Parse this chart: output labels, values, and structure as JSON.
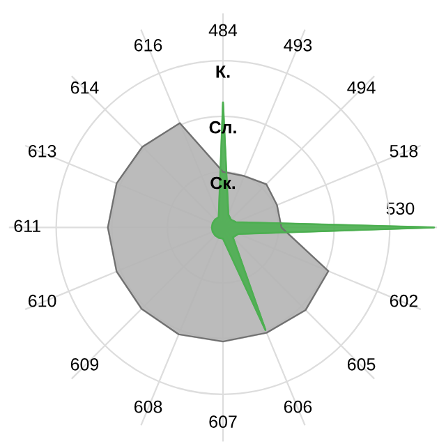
{
  "chart_data": {
    "type": "radar",
    "categories": [
      "484",
      "493",
      "494",
      "518",
      "530",
      "602",
      "605",
      "606",
      "607",
      "608",
      "609",
      "610",
      "611",
      "613",
      "614",
      "616"
    ],
    "series": [
      {
        "color": "#b4b4b4",
        "values": [
          1.0,
          1.0,
          1.1,
          1.05,
          1.05,
          2.05,
          2.1,
          2.05,
          2.05,
          2.08,
          2.07,
          2.07,
          2.07,
          2.07,
          2.05,
          2.03
        ]
      },
      {
        "color": "#4caf50",
        "values": [
          2.25,
          0.25,
          0.2,
          0.25,
          3.8,
          0.3,
          0.25,
          2.0,
          0.2,
          0.2,
          0.2,
          0.2,
          0.2,
          0.2,
          0.2,
          0.2
        ]
      }
    ],
    "ylim": [
      0,
      3.85
    ],
    "yticks": [
      {
        "value": 1,
        "label": "Ск."
      },
      {
        "value": 2,
        "label": "Сл."
      },
      {
        "value": 3,
        "label": "К."
      }
    ],
    "grid": true
  }
}
